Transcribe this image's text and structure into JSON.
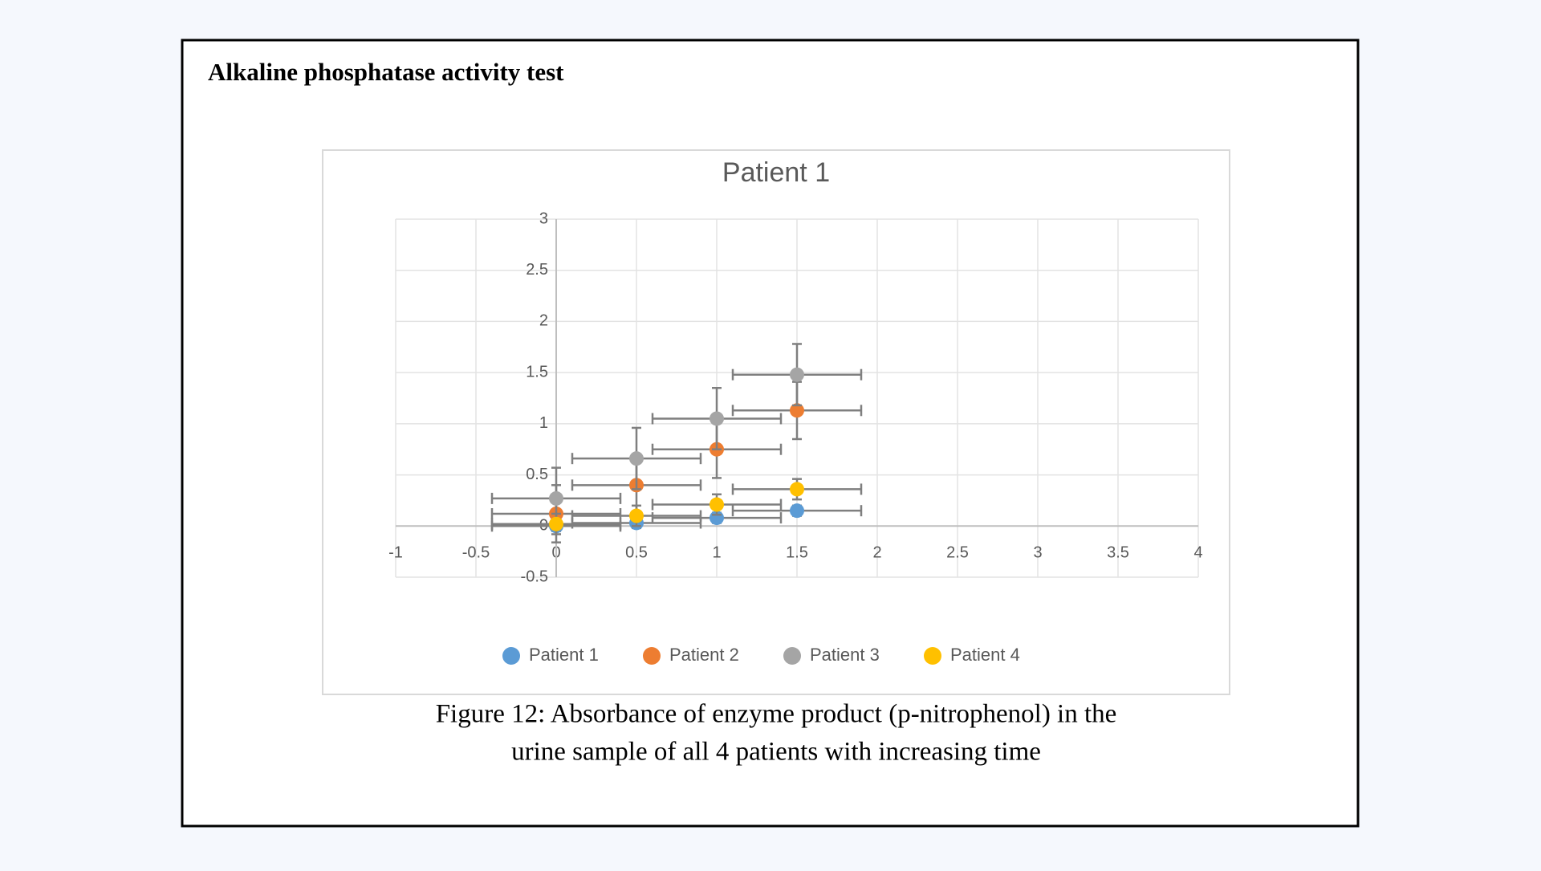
{
  "heading": "Alkaline phosphatase activity test",
  "caption": [
    "Figure 12: Absorbance of enzyme product (p-nitrophenol) in the",
    "urine sample of all 4 patients with increasing time"
  ],
  "chart_data": {
    "type": "scatter",
    "title": "Patient 1",
    "x": [
      0,
      0.5,
      1,
      1.5
    ],
    "series": [
      {
        "name": "Patient 1",
        "color": "#5b9bd5",
        "values": [
          0,
          0.03,
          0.08,
          0.15
        ],
        "y_error": 0.05,
        "x_error": 0.4
      },
      {
        "name": "Patient 2",
        "color": "#ed7d31",
        "values": [
          0.12,
          0.4,
          0.75,
          1.13
        ],
        "y_error": 0.28,
        "x_error": 0.4
      },
      {
        "name": "Patient 3",
        "color": "#a5a5a5",
        "values": [
          0.27,
          0.66,
          1.05,
          1.48
        ],
        "y_error": 0.3,
        "x_error": 0.4
      },
      {
        "name": "Patient 4",
        "color": "#ffc000",
        "values": [
          0.02,
          0.1,
          0.21,
          0.36
        ],
        "y_error": 0.1,
        "x_error": 0.4
      }
    ],
    "error_bar_color": "#7f7f7f",
    "xlim": [
      -1,
      4
    ],
    "xticks": [
      -1,
      -0.5,
      0,
      0.5,
      1,
      1.5,
      2,
      2.5,
      3,
      3.5,
      4
    ],
    "ylim": [
      -0.5,
      3
    ],
    "yticks": [
      -0.5,
      0,
      0.5,
      1,
      1.5,
      2,
      2.5,
      3
    ],
    "grid": true,
    "legend": "bottom"
  }
}
